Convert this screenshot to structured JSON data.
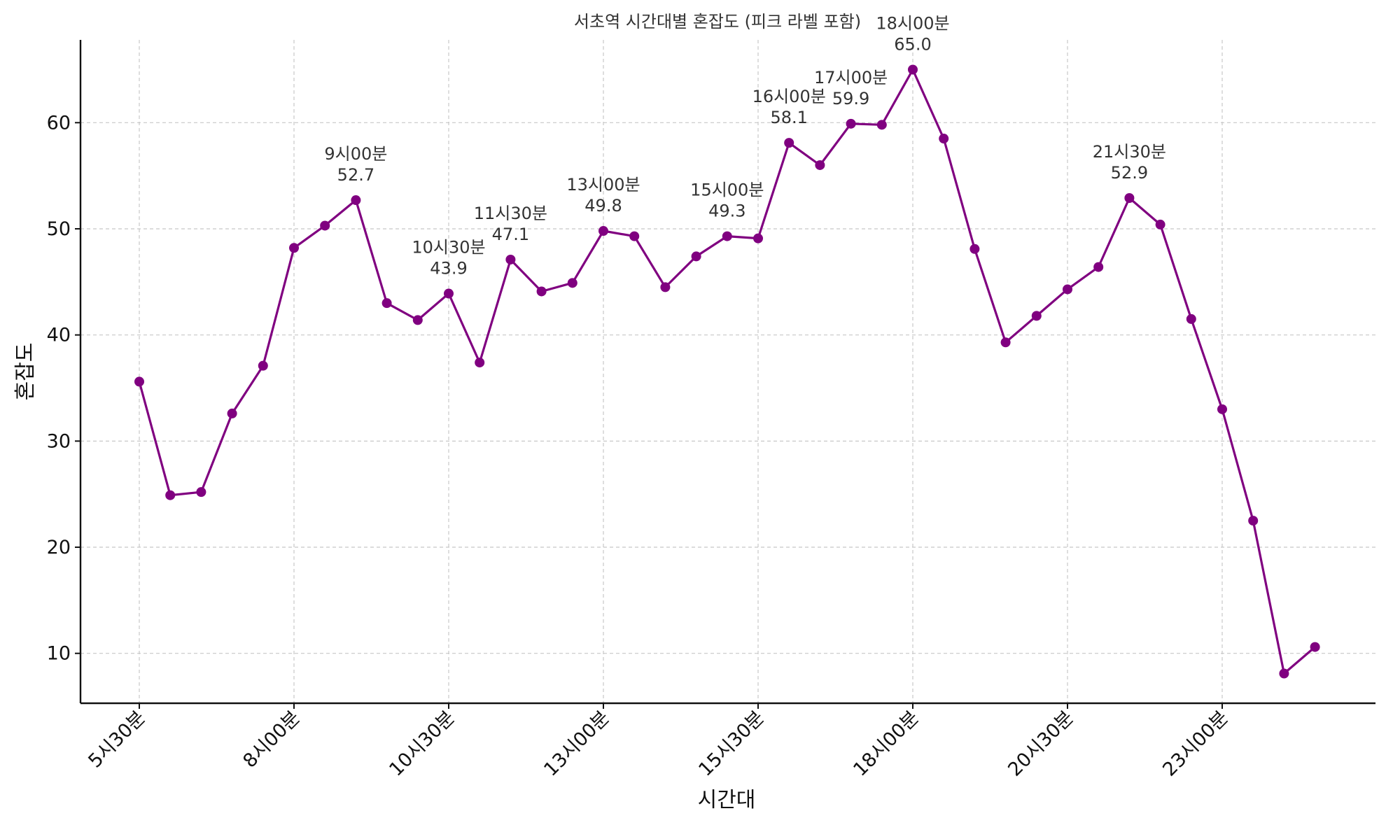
{
  "chart_data": {
    "type": "line",
    "title": "서초역 시간대별 혼잡도 (피크 라벨 포함)",
    "xlabel": "시간대",
    "ylabel": "혼잡도",
    "x": [
      "5시30분",
      "6시00분",
      "6시30분",
      "7시00분",
      "7시30분",
      "8시00분",
      "8시30분",
      "9시00분",
      "9시30분",
      "10시00분",
      "10시30분",
      "11시00분",
      "11시30분",
      "12시00분",
      "12시30분",
      "13시00분",
      "13시30분",
      "14시00분",
      "14시30분",
      "15시00분",
      "15시30분",
      "16시00분",
      "16시30분",
      "17시00분",
      "17시30분",
      "18시00분",
      "18시30분",
      "19시00분",
      "19시30분",
      "20시00분",
      "20시30분",
      "21시00분",
      "21시30분",
      "22시00분",
      "22시30분",
      "23시00분",
      "23시30분",
      "00시00분",
      "00시30분"
    ],
    "series": [
      {
        "color": "#800080",
        "values": [
          35.6,
          24.9,
          25.2,
          32.6,
          37.1,
          48.2,
          50.3,
          52.7,
          43.0,
          41.4,
          43.9,
          37.4,
          47.1,
          44.1,
          44.9,
          49.8,
          49.3,
          44.5,
          47.4,
          49.3,
          49.1,
          58.1,
          56.0,
          59.9,
          59.8,
          65.0,
          58.5,
          48.1,
          39.3,
          41.8,
          44.3,
          46.4,
          52.9,
          50.4,
          41.5,
          33.0,
          22.5,
          8.1,
          10.6
        ]
      }
    ],
    "x_tick_labels": [
      "5시30분",
      "8시00분",
      "10시30분",
      "13시00분",
      "15시30분",
      "18시00분",
      "20시30분",
      "23시00분"
    ],
    "y_ticks": [
      10,
      20,
      30,
      40,
      50,
      60
    ],
    "ylim": [
      5.3,
      67.8
    ],
    "grid": true,
    "peak_labels": [
      {
        "time": "9시00분",
        "value_text": "52.7"
      },
      {
        "time": "10시30분",
        "value_text": "43.9"
      },
      {
        "time": "11시30분",
        "value_text": "47.1"
      },
      {
        "time": "13시00분",
        "value_text": "49.8"
      },
      {
        "time": "15시00분",
        "value_text": "49.3"
      },
      {
        "time": "16시00분",
        "value_text": "58.1"
      },
      {
        "time": "17시00분",
        "value_text": "59.9"
      },
      {
        "time": "18시00분",
        "value_text": "65.0"
      },
      {
        "time": "21시30분",
        "value_text": "52.9"
      }
    ]
  }
}
